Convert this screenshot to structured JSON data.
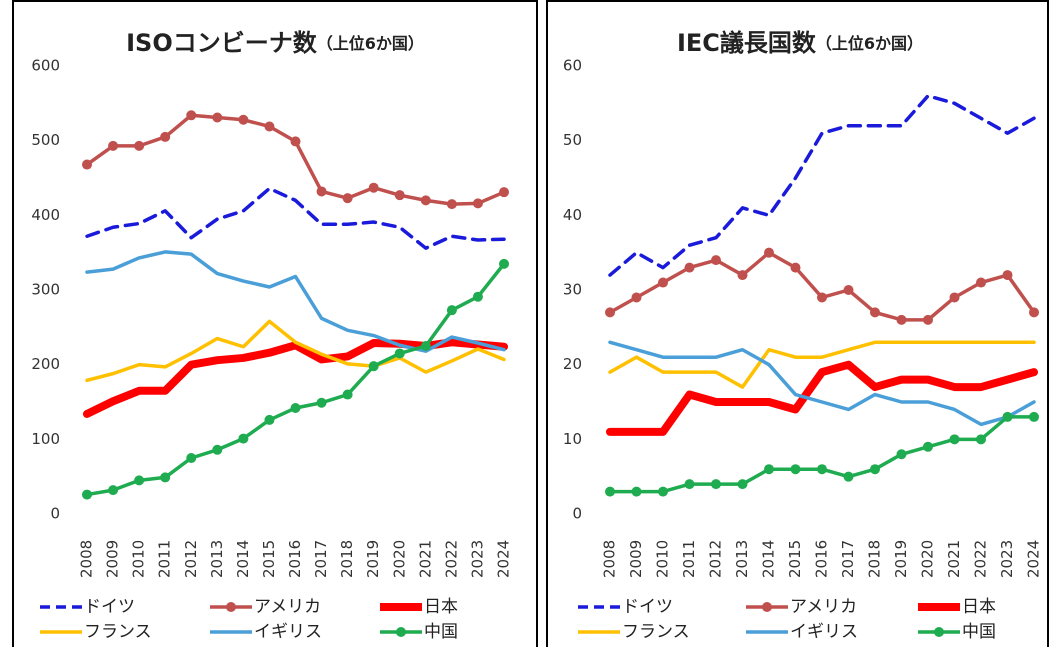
{
  "chart_data": [
    {
      "type": "line",
      "title": "ISOコンビーナ数",
      "subtitle": "（上位6か国）",
      "categories": [
        "2008",
        "2009",
        "2010",
        "2011",
        "2012",
        "2013",
        "2014",
        "2015",
        "2016",
        "2017",
        "2018",
        "2019",
        "2020",
        "2021",
        "2022",
        "2023",
        "2024"
      ],
      "ylim": [
        0,
        600
      ],
      "yticks": [
        0,
        100,
        200,
        300,
        400,
        500,
        600
      ],
      "series": [
        {
          "name": "ドイツ",
          "color": "#1a1adb",
          "dash": true,
          "marker": false,
          "width": 3.5,
          "values": [
            372,
            384,
            389,
            406,
            370,
            395,
            406,
            436,
            420,
            388,
            388,
            391,
            384,
            356,
            372,
            367,
            368
          ]
        },
        {
          "name": "アメリカ",
          "color": "#c0504d",
          "dash": false,
          "marker": true,
          "width": 3.5,
          "values": [
            468,
            493,
            493,
            505,
            534,
            531,
            528,
            519,
            499,
            432,
            423,
            437,
            427,
            420,
            415,
            416,
            431
          ]
        },
        {
          "name": "日本",
          "color": "#ff0000",
          "dash": false,
          "marker": false,
          "width": 8,
          "values": [
            134,
            151,
            165,
            165,
            200,
            206,
            209,
            216,
            226,
            207,
            211,
            229,
            228,
            225,
            230,
            227,
            224
          ]
        },
        {
          "name": "フランス",
          "color": "#ffc000",
          "dash": false,
          "marker": false,
          "width": 3.5,
          "values": [
            179,
            188,
            200,
            197,
            215,
            235,
            224,
            258,
            230,
            214,
            201,
            198,
            209,
            190,
            205,
            221,
            207
          ]
        },
        {
          "name": "イギリス",
          "color": "#4a9fd8",
          "dash": false,
          "marker": false,
          "width": 3.5,
          "values": [
            324,
            328,
            343,
            351,
            348,
            322,
            312,
            304,
            318,
            262,
            246,
            239,
            226,
            218,
            237,
            229,
            220
          ]
        },
        {
          "name": "中国",
          "color": "#1fab4f",
          "dash": false,
          "marker": true,
          "width": 3.5,
          "values": [
            26,
            32,
            45,
            49,
            75,
            86,
            101,
            126,
            142,
            149,
            160,
            198,
            215,
            225,
            273,
            291,
            335
          ]
        }
      ]
    },
    {
      "type": "line",
      "title": "IEC議長国数",
      "subtitle": "（上位6か国）",
      "categories": [
        "2008",
        "2009",
        "2010",
        "2011",
        "2012",
        "2013",
        "2014",
        "2015",
        "2016",
        "2017",
        "2018",
        "2019",
        "2020",
        "2021",
        "2022",
        "2023",
        "2024"
      ],
      "ylim": [
        0,
        60
      ],
      "yticks": [
        0,
        10,
        20,
        30,
        40,
        50,
        60
      ],
      "series": [
        {
          "name": "ドイツ",
          "color": "#1a1adb",
          "dash": true,
          "marker": false,
          "width": 3.5,
          "values": [
            32,
            35,
            33,
            36,
            37,
            41,
            40,
            45,
            51,
            52,
            52,
            52,
            56,
            55,
            53,
            51,
            53
          ]
        },
        {
          "name": "アメリカ",
          "color": "#c0504d",
          "dash": false,
          "marker": true,
          "width": 3.5,
          "values": [
            27,
            29,
            31,
            33,
            34,
            32,
            35,
            33,
            29,
            30,
            27,
            26,
            26,
            29,
            31,
            32,
            27
          ]
        },
        {
          "name": "日本",
          "color": "#ff0000",
          "dash": false,
          "marker": false,
          "width": 8,
          "values": [
            11,
            11,
            11,
            16,
            15,
            15,
            15,
            14,
            19,
            20,
            17,
            18,
            18,
            17,
            17,
            18,
            19
          ]
        },
        {
          "name": "フランス",
          "color": "#ffc000",
          "dash": false,
          "marker": false,
          "width": 3.5,
          "values": [
            19,
            21,
            19,
            19,
            19,
            17,
            22,
            21,
            21,
            22,
            23,
            23,
            23,
            23,
            23,
            23,
            23
          ]
        },
        {
          "name": "イギリス",
          "color": "#4a9fd8",
          "dash": false,
          "marker": false,
          "width": 3.5,
          "values": [
            23,
            22,
            21,
            21,
            21,
            22,
            20,
            16,
            15,
            14,
            16,
            15,
            15,
            14,
            12,
            13,
            15
          ]
        },
        {
          "name": "中国",
          "color": "#1fab4f",
          "dash": false,
          "marker": true,
          "width": 3.5,
          "values": [
            3,
            3,
            3,
            4,
            4,
            4,
            6,
            6,
            6,
            5,
            6,
            8,
            9,
            10,
            10,
            13,
            13
          ]
        }
      ]
    }
  ]
}
